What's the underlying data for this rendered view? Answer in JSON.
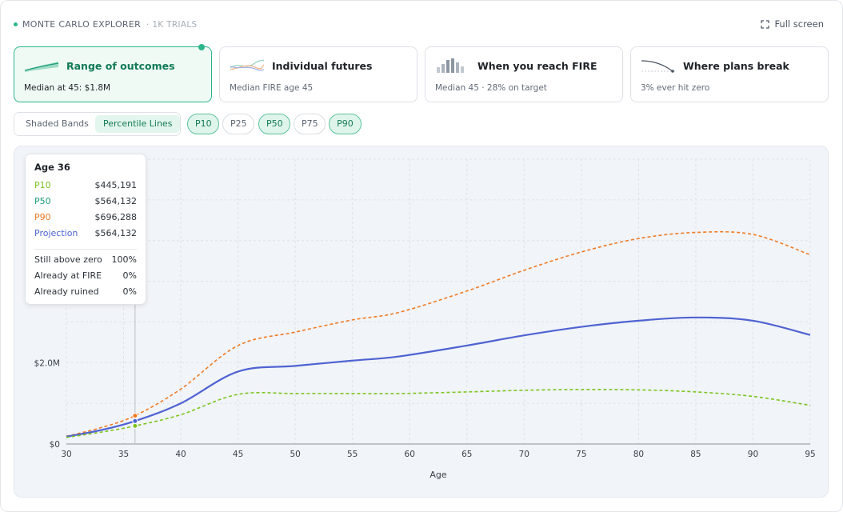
{
  "header": {
    "title": "MONTE CARLO EXPLORER",
    "trials": "· 1K TRIALS",
    "fullscreen_label": "Full screen"
  },
  "cards": [
    {
      "title": "Range of outcomes",
      "subtitle": "Median at 45: $1.8M",
      "active": true
    },
    {
      "title": "Individual futures",
      "subtitle": "Median FIRE age 45",
      "active": false
    },
    {
      "title": "When you reach FIRE",
      "subtitle": "Median 45 · 28% on target",
      "active": false
    },
    {
      "title": "Where plans break",
      "subtitle": "3% ever hit zero",
      "active": false
    }
  ],
  "view_toggle": {
    "options": [
      "Shaded Bands",
      "Percentile Lines"
    ],
    "selected": "Percentile Lines"
  },
  "percentile_pills": [
    {
      "label": "P10",
      "on": true
    },
    {
      "label": "P25",
      "on": false
    },
    {
      "label": "P50",
      "on": true
    },
    {
      "label": "P75",
      "on": false
    },
    {
      "label": "P90",
      "on": true
    }
  ],
  "tooltip": {
    "title": "Age 36",
    "rows": [
      {
        "label": "P10",
        "value": "$445,191",
        "color": "#7cc41f"
      },
      {
        "label": "P50",
        "value": "$564,132",
        "color": "#1a9b78"
      },
      {
        "label": "P90",
        "value": "$696,288",
        "color": "#f07a24"
      },
      {
        "label": "Projection",
        "value": "$564,132",
        "color": "#4f63d2"
      }
    ],
    "stats": [
      {
        "label": "Still above zero",
        "value": "100%"
      },
      {
        "label": "Already at FIRE",
        "value": "0%"
      },
      {
        "label": "Already ruined",
        "value": "0%"
      }
    ]
  },
  "chart_data": {
    "type": "line",
    "xlabel": "Age",
    "xlim": [
      30,
      95
    ],
    "ylim": [
      0,
      7000000
    ],
    "x_ticks": [
      30,
      35,
      40,
      45,
      50,
      55,
      60,
      65,
      70,
      75,
      80,
      85,
      90,
      95
    ],
    "y_ticks": [
      0,
      2000000
    ],
    "y_tick_labels": [
      "$0",
      "$2.0M"
    ],
    "grid": true,
    "hover_age": 36,
    "x": [
      30,
      33,
      36,
      40,
      45,
      50,
      55,
      59,
      65,
      70,
      75,
      80,
      85,
      90,
      95
    ],
    "series": [
      {
        "key": "P90",
        "color": "#f07a24",
        "dash": true,
        "values": [
          190000,
          400000,
          696288,
          1350000,
          2420000,
          2750000,
          3050000,
          3230000,
          3760000,
          4270000,
          4720000,
          5050000,
          5200000,
          5150000,
          4650000
        ]
      },
      {
        "key": "P50",
        "color": "#4f63d2",
        "dash": false,
        "values": [
          180000,
          340000,
          564132,
          1000000,
          1780000,
          1920000,
          2050000,
          2150000,
          2420000,
          2670000,
          2880000,
          3030000,
          3110000,
          3030000,
          2680000
        ]
      },
      {
        "key": "P10",
        "color": "#7cc41f",
        "dash": true,
        "values": [
          160000,
          290000,
          445191,
          720000,
          1220000,
          1240000,
          1240000,
          1240000,
          1280000,
          1320000,
          1340000,
          1330000,
          1280000,
          1170000,
          950000
        ]
      }
    ]
  }
}
